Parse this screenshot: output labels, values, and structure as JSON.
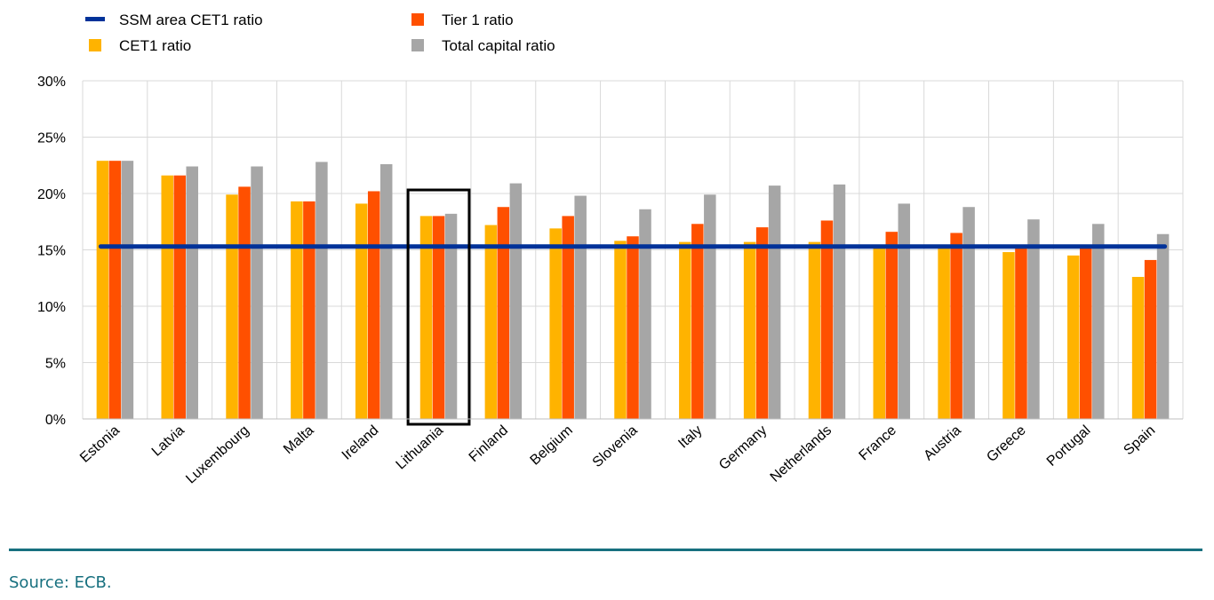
{
  "chart_data": {
    "type": "bar",
    "categories": [
      "Estonia",
      "Latvia",
      "Luxembourg",
      "Malta",
      "Ireland",
      "Lithuania",
      "Finland",
      "Belgium",
      "Slovenia",
      "Italy",
      "Germany",
      "Netherlands",
      "France",
      "Austria",
      "Greece",
      "Portugal",
      "Spain"
    ],
    "series": [
      {
        "name": "CET1 ratio",
        "color": "#ffb300",
        "values": [
          22.9,
          21.6,
          19.9,
          19.3,
          19.1,
          18.0,
          17.2,
          16.9,
          15.8,
          15.7,
          15.7,
          15.7,
          15.3,
          15.3,
          14.8,
          14.5,
          12.6
        ]
      },
      {
        "name": "Tier 1 ratio",
        "color": "#ff5000",
        "values": [
          22.9,
          21.6,
          20.6,
          19.3,
          20.2,
          18.0,
          18.8,
          18.0,
          16.2,
          17.3,
          17.0,
          17.6,
          16.6,
          16.5,
          15.3,
          15.3,
          14.1
        ]
      },
      {
        "name": "Total capital ratio",
        "color": "#a6a6a6",
        "values": [
          22.9,
          22.4,
          22.4,
          22.8,
          22.6,
          18.2,
          20.9,
          19.8,
          18.6,
          19.9,
          20.7,
          20.8,
          19.1,
          18.8,
          17.7,
          17.3,
          16.4
        ]
      }
    ],
    "reference_line": {
      "name": "SSM area CET1 ratio",
      "color": "#003299",
      "value": 15.3
    },
    "highlighted_category": "Lithuania",
    "yticks": [
      "0%",
      "5%",
      "10%",
      "15%",
      "20%",
      "25%",
      "30%"
    ],
    "ylim": [
      0,
      30
    ],
    "grid": true,
    "legend_placement": "top-left",
    "title": "",
    "xlabel": "",
    "ylabel": ""
  },
  "footer": {
    "source": "Source: ECB."
  }
}
